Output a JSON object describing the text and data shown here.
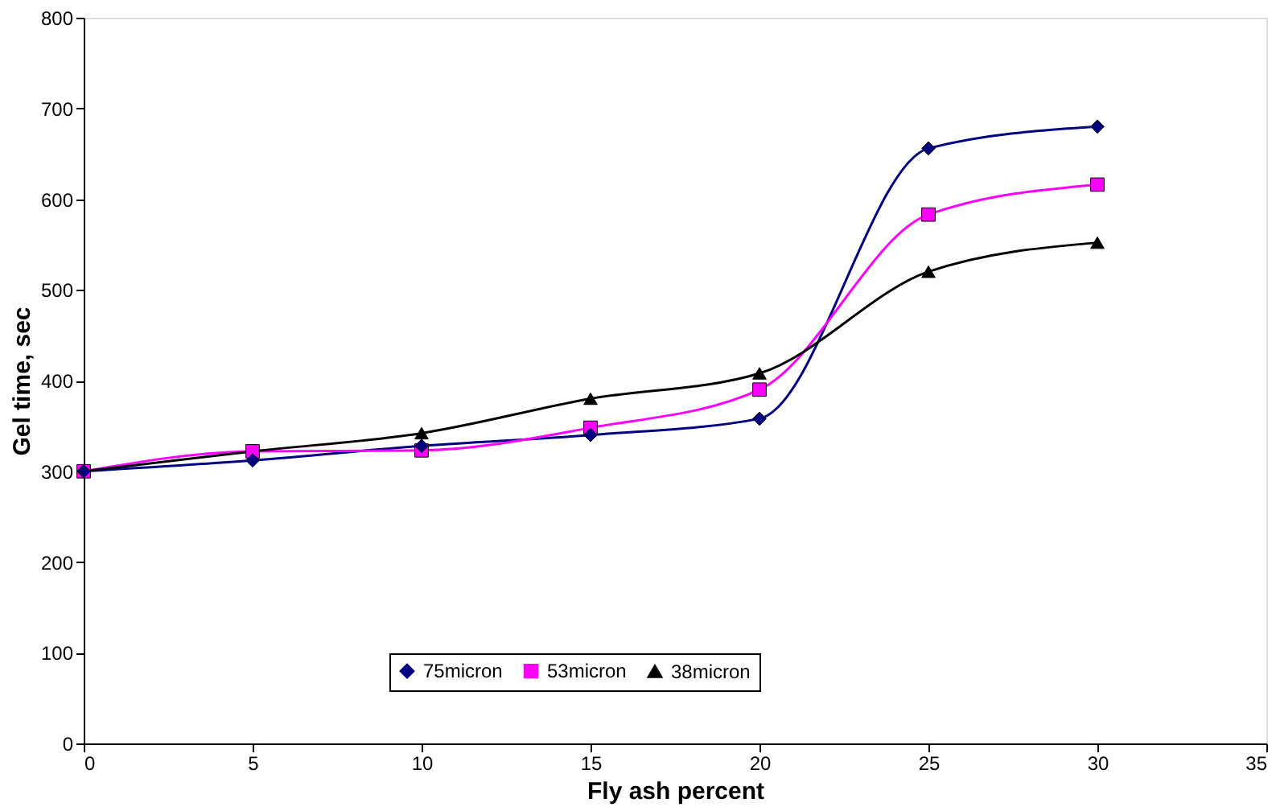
{
  "chart_data": {
    "type": "line",
    "xlabel": "Fly ash percent",
    "ylabel": "Gel time, sec",
    "x": [
      0,
      5,
      10,
      15,
      20,
      25,
      30
    ],
    "series": [
      {
        "name": "75micron",
        "color": "#000080",
        "marker": "diamond",
        "values": [
          300,
          312,
          328,
          340,
          358,
          656,
          680
        ]
      },
      {
        "name": "53micron",
        "color": "#ff00ff",
        "marker": "square",
        "values": [
          300,
          322,
          323,
          348,
          390,
          583,
          616
        ]
      },
      {
        "name": "38micron",
        "color": "#000000",
        "marker": "triangle",
        "values": [
          300,
          322,
          342,
          380,
          408,
          520,
          552
        ]
      }
    ],
    "xlim": [
      0,
      35
    ],
    "xticks": [
      0,
      5,
      10,
      15,
      20,
      25,
      30,
      35
    ],
    "ylim": [
      0,
      800
    ],
    "yticks": [
      0,
      100,
      200,
      300,
      400,
      500,
      600,
      700,
      800
    ],
    "grid": false,
    "legend": "bottom",
    "line_style": "solid"
  }
}
